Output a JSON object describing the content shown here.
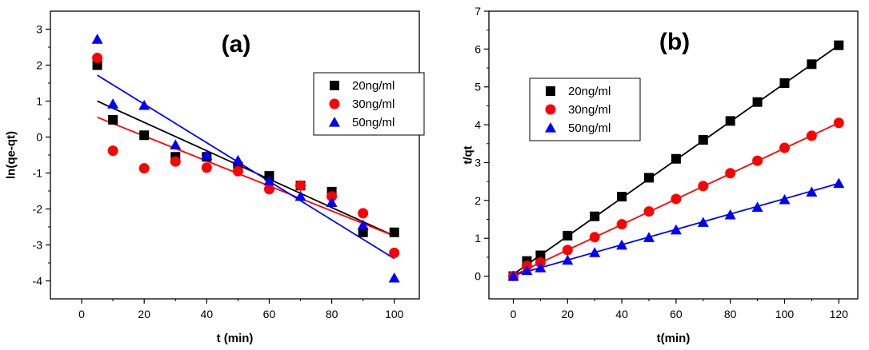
{
  "chart_data": [
    {
      "type": "scatter",
      "panel_label": "(a)",
      "xlabel": "t (min)",
      "ylabel": "ln(qe-qt)",
      "xlim": [
        -10,
        108
      ],
      "ylim": [
        -4.5,
        3.5
      ],
      "xticks": [
        0,
        20,
        40,
        60,
        80,
        100
      ],
      "yticks": [
        -4,
        -3,
        -2,
        -1,
        0,
        1,
        2,
        3
      ],
      "legend_position": "top-right",
      "grid": false,
      "series": [
        {
          "name": "20ng/ml",
          "color": "#000000",
          "marker": "square",
          "x": [
            5,
            10,
            20,
            30,
            40,
            50,
            60,
            70,
            80,
            90,
            100
          ],
          "y": [
            2.0,
            0.48,
            0.05,
            -0.55,
            -0.55,
            -0.82,
            -1.08,
            -1.35,
            -1.52,
            -2.65,
            -2.65
          ],
          "fit": [
            [
              5,
              1.0
            ],
            [
              100,
              -2.75
            ]
          ]
        },
        {
          "name": "30ng/ml",
          "color": "#ff0000",
          "marker": "circle",
          "x": [
            5,
            10,
            20,
            30,
            40,
            50,
            60,
            70,
            80,
            90,
            100
          ],
          "y": [
            2.2,
            -0.38,
            -0.87,
            -0.68,
            -0.85,
            -0.95,
            -1.45,
            -1.35,
            -1.65,
            -2.12,
            -3.22
          ],
          "fit": [
            [
              5,
              0.55
            ],
            [
              100,
              -2.75
            ]
          ]
        },
        {
          "name": "50ng/ml",
          "color": "#0000ff",
          "marker": "triangle",
          "x": [
            5,
            10,
            20,
            30,
            40,
            50,
            60,
            70,
            80,
            90,
            100
          ],
          "y": [
            2.72,
            0.92,
            0.88,
            -0.22,
            -0.5,
            -0.65,
            -1.22,
            -1.65,
            -1.82,
            -2.45,
            -3.92
          ],
          "fit": [
            [
              5,
              1.72
            ],
            [
              100,
              -3.38
            ]
          ]
        }
      ]
    },
    {
      "type": "scatter",
      "panel_label": "(b)",
      "xlabel": "t(min)",
      "ylabel": "t/qt",
      "xlim": [
        -9,
        127
      ],
      "ylim": [
        -0.6,
        7
      ],
      "xticks": [
        0,
        20,
        40,
        60,
        80,
        100,
        120
      ],
      "yticks": [
        0,
        1,
        2,
        3,
        4,
        5,
        6,
        7
      ],
      "legend_position": "top-left",
      "grid": false,
      "series": [
        {
          "name": "20ng/ml",
          "color": "#000000",
          "marker": "square",
          "x": [
            0,
            5,
            10,
            20,
            30,
            40,
            50,
            60,
            70,
            80,
            90,
            100,
            110,
            120
          ],
          "y": [
            0,
            0.4,
            0.55,
            1.07,
            1.58,
            2.1,
            2.6,
            3.1,
            3.6,
            4.1,
            4.6,
            5.1,
            5.6,
            6.1
          ],
          "fit": [
            [
              0,
              0.05
            ],
            [
              120,
              6.1
            ]
          ]
        },
        {
          "name": "30ng/ml",
          "color": "#ff0000",
          "marker": "circle",
          "x": [
            0,
            5,
            10,
            20,
            30,
            40,
            50,
            60,
            70,
            80,
            90,
            100,
            110,
            120
          ],
          "y": [
            0,
            0.27,
            0.36,
            0.69,
            1.03,
            1.37,
            1.71,
            2.04,
            2.38,
            2.72,
            3.05,
            3.39,
            3.71,
            4.05
          ],
          "fit": [
            [
              0,
              0.02
            ],
            [
              120,
              4.05
            ]
          ]
        },
        {
          "name": "50ng/ml",
          "color": "#0000ff",
          "marker": "triangle",
          "x": [
            0,
            5,
            10,
            20,
            30,
            40,
            50,
            60,
            70,
            80,
            90,
            100,
            110,
            120
          ],
          "y": [
            0,
            0.15,
            0.22,
            0.42,
            0.62,
            0.82,
            1.02,
            1.22,
            1.42,
            1.62,
            1.82,
            2.02,
            2.22,
            2.45
          ],
          "fit": [
            [
              0,
              0.02
            ],
            [
              120,
              2.45
            ]
          ]
        }
      ]
    }
  ]
}
